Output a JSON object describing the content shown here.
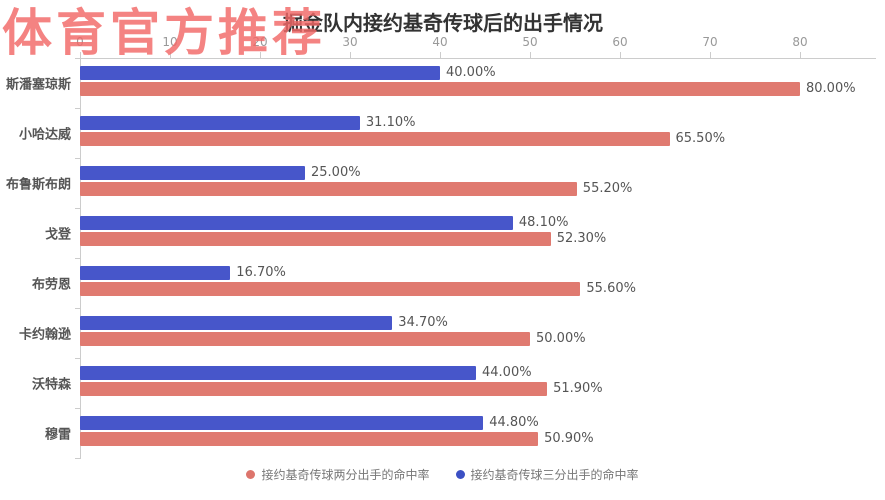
{
  "watermark": {
    "text": "体育官方推荐",
    "color": "#f26866"
  },
  "header": {
    "title": "掘金队内接约基奇传球后的出手情况"
  },
  "legend": [
    {
      "label": "接约基奇传球两分出手的命中率",
      "color": "#dd756c"
    },
    {
      "label": "接约基奇传球三分出手的命中率",
      "color": "#3c50c4"
    }
  ],
  "chart_data": {
    "type": "bar",
    "orientation": "horizontal",
    "title": "掘金队内接约基奇传球后的出手情况",
    "categories": [
      "斯潘塞琼斯",
      "小哈达威",
      "布鲁斯布朗",
      "戈登",
      "布劳恩",
      "卡约翰逊",
      "沃特森",
      "穆雷"
    ],
    "series": [
      {
        "name": "接约基奇传球三分出手的命中率",
        "color": "#4756ca",
        "values": [
          40.0,
          31.1,
          25.0,
          48.1,
          16.7,
          34.7,
          44.0,
          44.8
        ],
        "labels": [
          "40.00%",
          "31.10%",
          "25.00%",
          "48.10%",
          "16.70%",
          "34.70%",
          "44.00%",
          "44.80%"
        ]
      },
      {
        "name": "接约基奇传球两分出手的命中率",
        "color": "#e07a70",
        "values": [
          80.0,
          65.5,
          55.2,
          52.3,
          55.6,
          50.0,
          51.9,
          50.9
        ],
        "labels": [
          "80.00%",
          "65.50%",
          "55.20%",
          "52.30%",
          "55.60%",
          "50.00%",
          "51.90%",
          "50.90%"
        ]
      }
    ],
    "x_ticks": [
      0,
      10,
      20,
      30,
      40,
      50,
      60,
      70,
      80
    ],
    "xlim": [
      0,
      88
    ],
    "grid": false,
    "legend_position": "bottom",
    "value_label_format": "0.00%",
    "axis_position": "top"
  }
}
